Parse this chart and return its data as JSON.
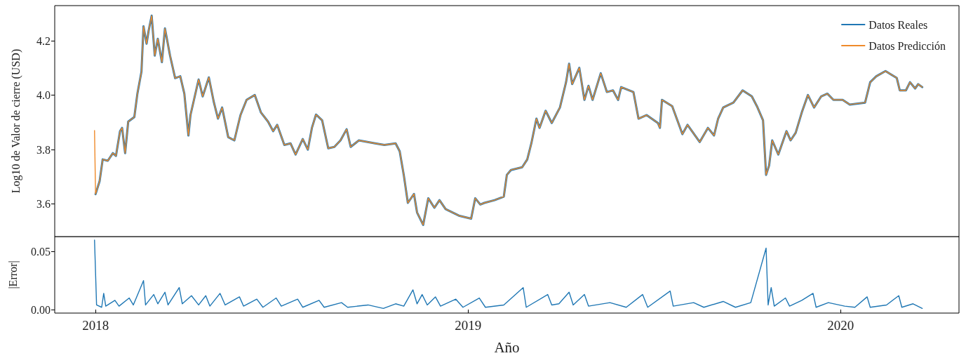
{
  "chart_data": [
    {
      "type": "line",
      "ylabel": "Log10 de Valor de cierre (USD)",
      "legend": "top right",
      "grid": false,
      "marker": "none",
      "tick_labels": "y",
      "xlim": [
        "2017-11-22",
        "2020-04-26"
      ],
      "ylim": [
        3.48,
        4.33
      ],
      "yticks": [
        3.6,
        3.8,
        {
          "value": 4.0,
          "label": "4.0"
        },
        4.2
      ],
      "x": [
        "2017-12-31",
        "2018-01-01",
        "2018-01-05",
        "2018-01-08",
        "2018-01-13",
        "2018-01-18",
        "2018-01-21",
        "2018-01-25",
        "2018-01-27",
        "2018-01-30",
        "2018-02-02",
        "2018-02-08",
        "2018-02-11",
        "2018-02-15",
        "2018-02-17",
        "2018-02-20",
        "2018-02-22",
        "2018-02-25",
        "2018-02-28",
        "2018-03-03",
        "2018-03-07",
        "2018-03-10",
        "2018-03-15",
        "2018-03-20",
        "2018-03-25",
        "2018-03-29",
        "2018-04-02",
        "2018-04-04",
        "2018-04-12",
        "2018-04-16",
        "2018-04-22",
        "2018-04-27",
        "2018-05-01",
        "2018-05-05",
        "2018-05-11",
        "2018-05-17",
        "2018-05-23",
        "2018-05-29",
        "2018-06-06",
        "2018-06-12",
        "2018-06-19",
        "2018-06-24",
        "2018-06-28",
        "2018-07-05",
        "2018-07-11",
        "2018-07-16",
        "2018-07-23",
        "2018-07-28",
        "2018-08-01",
        "2018-08-05",
        "2018-08-11",
        "2018-08-17",
        "2018-08-23",
        "2018-08-29",
        "2018-09-04",
        "2018-09-08",
        "2018-09-16",
        "2018-10-02",
        "2018-10-11",
        "2018-10-22",
        "2018-10-26",
        "2018-10-30",
        "2018-11-03",
        "2018-11-09",
        "2018-11-12",
        "2018-11-18",
        "2018-11-23",
        "2018-11-29",
        "2018-12-04",
        "2018-12-10",
        "2018-12-23",
        "2019-01-04",
        "2019-01-08",
        "2019-01-13",
        "2019-01-17",
        "2019-01-27",
        "2019-02-05",
        "2019-02-08",
        "2019-02-12",
        "2019-02-23",
        "2019-02-28",
        "2019-03-04",
        "2019-03-09",
        "2019-03-12",
        "2019-03-18",
        "2019-03-24",
        "2019-04-01",
        "2019-04-07",
        "2019-04-10",
        "2019-04-13",
        "2019-04-20",
        "2019-04-25",
        "2019-04-29",
        "2019-05-03",
        "2019-05-11",
        "2019-05-17",
        "2019-05-23",
        "2019-05-28",
        "2019-05-31",
        "2019-06-12",
        "2019-06-17",
        "2019-06-25",
        "2019-07-06",
        "2019-07-08",
        "2019-07-10",
        "2019-07-20",
        "2019-07-30",
        "2019-08-04",
        "2019-08-16",
        "2019-08-24",
        "2019-08-30",
        "2019-09-03",
        "2019-09-08",
        "2019-09-18",
        "2019-09-27",
        "2019-10-06",
        "2019-10-11",
        "2019-10-17",
        "2019-10-20",
        "2019-10-23",
        "2019-10-26",
        "2019-11-01",
        "2019-11-09",
        "2019-11-13",
        "2019-11-18",
        "2019-11-24",
        "2019-11-30",
        "2019-12-06",
        "2019-12-13",
        "2019-12-19",
        "2019-12-25",
        "2020-01-03",
        "2020-01-10",
        "2020-01-25",
        "2020-01-30",
        "2020-02-05",
        "2020-02-14",
        "2020-02-25",
        "2020-02-28",
        "2020-03-05",
        "2020-03-09",
        "2020-03-14",
        "2020-03-17",
        "2020-03-21"
      ],
      "series": [
        {
          "name": "Datos Reales",
          "color": "#1f77b4",
          "values": [
            null,
            3.636,
            3.684,
            3.764,
            3.759,
            3.787,
            3.777,
            3.868,
            3.88,
            3.787,
            3.903,
            3.92,
            4.006,
            4.087,
            4.254,
            4.19,
            4.237,
            4.293,
            4.146,
            4.208,
            4.122,
            4.246,
            4.146,
            4.063,
            4.07,
            4.006,
            3.852,
            3.927,
            4.058,
            3.996,
            4.066,
            3.973,
            3.914,
            3.955,
            3.846,
            3.834,
            3.927,
            3.983,
            4.001,
            3.937,
            3.903,
            3.868,
            3.891,
            3.817,
            3.823,
            3.782,
            3.839,
            3.8,
            3.88,
            3.929,
            3.908,
            3.805,
            3.81,
            3.834,
            3.875,
            3.81,
            3.834,
            3.823,
            3.817,
            3.823,
            3.794,
            3.707,
            3.604,
            3.637,
            3.569,
            3.523,
            3.621,
            3.586,
            3.614,
            3.581,
            3.557,
            3.546,
            3.621,
            3.598,
            3.604,
            3.614,
            3.627,
            3.707,
            3.725,
            3.735,
            3.764,
            3.823,
            3.914,
            3.88,
            3.943,
            3.898,
            3.955,
            4.048,
            4.116,
            4.041,
            4.101,
            3.983,
            4.035,
            3.983,
            4.081,
            4.012,
            4.018,
            3.983,
            4.03,
            4.012,
            3.914,
            3.927,
            3.898,
            3.88,
            3.983,
            3.96,
            3.857,
            3.891,
            3.828,
            3.88,
            3.852,
            3.914,
            3.955,
            3.973,
            4.018,
            3.996,
            3.96,
            3.908,
            3.707,
            3.742,
            3.834,
            3.782,
            3.868,
            3.834,
            3.862,
            3.937,
            4.001,
            3.955,
            3.996,
            4.006,
            3.983,
            3.983,
            3.966,
            3.973,
            4.048,
            4.07,
            4.089,
            4.064,
            4.018,
            4.018,
            4.048,
            4.025,
            4.041,
            4.03
          ]
        },
        {
          "name": "Datos Predicción",
          "color": "#ef8a2a",
          "values": [
            3.87,
            3.636,
            3.684,
            3.764,
            3.759,
            3.787,
            3.777,
            3.868,
            3.88,
            3.787,
            3.903,
            3.92,
            4.006,
            4.087,
            4.254,
            4.19,
            4.237,
            4.293,
            4.146,
            4.208,
            4.122,
            4.246,
            4.146,
            4.063,
            4.07,
            4.006,
            3.852,
            3.927,
            4.058,
            3.996,
            4.066,
            3.973,
            3.914,
            3.955,
            3.846,
            3.834,
            3.927,
            3.983,
            4.001,
            3.937,
            3.903,
            3.868,
            3.891,
            3.817,
            3.823,
            3.782,
            3.839,
            3.8,
            3.88,
            3.929,
            3.908,
            3.805,
            3.81,
            3.834,
            3.875,
            3.81,
            3.834,
            3.823,
            3.817,
            3.823,
            3.794,
            3.707,
            3.604,
            3.637,
            3.569,
            3.523,
            3.621,
            3.586,
            3.614,
            3.581,
            3.557,
            3.546,
            3.621,
            3.598,
            3.604,
            3.614,
            3.627,
            3.707,
            3.725,
            3.735,
            3.764,
            3.823,
            3.914,
            3.88,
            3.943,
            3.898,
            3.955,
            4.048,
            4.116,
            4.041,
            4.101,
            3.983,
            4.035,
            3.983,
            4.081,
            4.012,
            4.018,
            3.983,
            4.03,
            4.012,
            3.914,
            3.927,
            3.898,
            3.88,
            3.983,
            3.96,
            3.857,
            3.891,
            3.828,
            3.88,
            3.852,
            3.914,
            3.955,
            3.973,
            4.018,
            3.996,
            3.96,
            3.908,
            3.707,
            3.742,
            3.834,
            3.782,
            3.868,
            3.834,
            3.862,
            3.937,
            4.001,
            3.955,
            3.996,
            4.006,
            3.983,
            3.983,
            3.966,
            3.973,
            4.048,
            4.07,
            4.089,
            4.064,
            4.018,
            4.018,
            4.048,
            4.025,
            4.041,
            4.03
          ]
        }
      ]
    },
    {
      "type": "line",
      "xlabel": "Año",
      "ylabel": "|Error|",
      "grid": false,
      "marker": "none",
      "xlim": [
        "2017-11-22",
        "2020-04-26"
      ],
      "xticks": [
        {
          "value": "2018-01-01",
          "label": "2018"
        },
        {
          "value": "2019-01-01",
          "label": "2019"
        },
        {
          "value": "2020-01-01",
          "label": "2020"
        }
      ],
      "ylim": [
        -0.003,
        0.063
      ],
      "yticks": [
        {
          "value": 0,
          "label": "0.00"
        },
        {
          "value": 0.05,
          "label": "0.05"
        }
      ],
      "x": [
        "2017-12-31",
        "2018-01-02",
        "2018-01-07",
        "2018-01-09",
        "2018-01-11",
        "2018-01-20",
        "2018-01-24",
        "2018-02-03",
        "2018-02-07",
        "2018-02-17",
        "2018-02-19",
        "2018-02-27",
        "2018-03-03",
        "2018-03-10",
        "2018-03-13",
        "2018-03-24",
        "2018-03-27",
        "2018-04-05",
        "2018-04-12",
        "2018-04-19",
        "2018-04-23",
        "2018-05-03",
        "2018-05-08",
        "2018-05-22",
        "2018-05-26",
        "2018-06-08",
        "2018-06-14",
        "2018-06-27",
        "2018-07-02",
        "2018-07-18",
        "2018-07-23",
        "2018-08-08",
        "2018-08-13",
        "2018-08-30",
        "2018-09-05",
        "2018-09-25",
        "2018-10-10",
        "2018-10-22",
        "2018-10-30",
        "2018-11-08",
        "2018-11-12",
        "2018-11-17",
        "2018-11-22",
        "2018-11-30",
        "2018-12-05",
        "2018-12-20",
        "2018-12-27",
        "2019-01-12",
        "2019-01-18",
        "2019-02-05",
        "2019-02-24",
        "2019-02-27",
        "2019-03-20",
        "2019-03-24",
        "2019-03-31",
        "2019-04-10",
        "2019-04-14",
        "2019-04-25",
        "2019-04-29",
        "2019-05-20",
        "2019-06-05",
        "2019-06-21",
        "2019-06-26",
        "2019-07-18",
        "2019-07-21",
        "2019-08-10",
        "2019-08-20",
        "2019-09-08",
        "2019-09-20",
        "2019-10-05",
        "2019-10-20",
        "2019-10-22",
        "2019-10-25",
        "2019-10-28",
        "2019-11-08",
        "2019-11-12",
        "2019-11-24",
        "2019-12-05",
        "2019-12-08",
        "2019-12-20",
        "2020-01-05",
        "2020-01-15",
        "2020-01-27",
        "2020-01-30",
        "2020-02-15",
        "2020-02-27",
        "2020-03-01",
        "2020-03-12",
        "2020-03-21"
      ],
      "series": [
        {
          "color": "#1f77b4",
          "values": [
            0.06,
            0.004,
            0.002,
            0.014,
            0.003,
            0.008,
            0.003,
            0.01,
            0.004,
            0.025,
            0.004,
            0.013,
            0.005,
            0.015,
            0.004,
            0.019,
            0.005,
            0.012,
            0.004,
            0.012,
            0.003,
            0.014,
            0.004,
            0.011,
            0.003,
            0.009,
            0.002,
            0.01,
            0.003,
            0.009,
            0.002,
            0.008,
            0.002,
            0.006,
            0.002,
            0.004,
            0.001,
            0.005,
            0.003,
            0.017,
            0.005,
            0.013,
            0.004,
            0.011,
            0.003,
            0.009,
            0.002,
            0.01,
            0.002,
            0.004,
            0.019,
            0.002,
            0.013,
            0.004,
            0.005,
            0.015,
            0.004,
            0.013,
            0.003,
            0.006,
            0.002,
            0.013,
            0.002,
            0.016,
            0.003,
            0.006,
            0.002,
            0.007,
            0.002,
            0.006,
            0.053,
            0.004,
            0.019,
            0.003,
            0.01,
            0.003,
            0.008,
            0.014,
            0.002,
            0.006,
            0.003,
            0.002,
            0.011,
            0.002,
            0.004,
            0.012,
            0.002,
            0.005,
            0.001
          ]
        }
      ]
    }
  ]
}
